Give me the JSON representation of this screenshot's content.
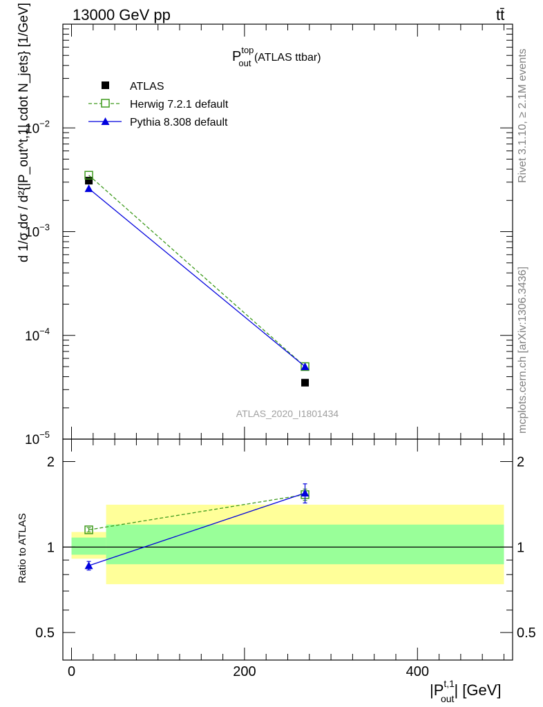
{
  "header": {
    "energy": "13000 GeV pp",
    "process": "tt̄"
  },
  "side": {
    "rivet": "Rivet 3.1.10, ≥ 2.1M events",
    "mcplots": "mcplots.cern.ch [arXiv:1306.3436]"
  },
  "chart_data": [
    {
      "type": "line",
      "panel": "main",
      "title": "P_out^top (ATLAS ttbar)",
      "title_base": "P",
      "title_sup": "top",
      "title_sub": "out",
      "title_rest": " (ATLAS ttbar)",
      "analysis_label": "ATLAS_2020_I1801434",
      "ylabel": "d 1/σ dσ / d²{|P_out^t,1| cdot N_jets} [1/GeV]",
      "yscale": "log",
      "ylim": [
        1e-05,
        0.1
      ],
      "xlim": [
        -10,
        510
      ],
      "yticks": [
        {
          "value": 0.01,
          "base": "10",
          "exp": "−2"
        },
        {
          "value": 0.001,
          "base": "10",
          "exp": "−3"
        },
        {
          "value": 0.0001,
          "base": "10",
          "exp": "−4"
        },
        {
          "value": 1e-05,
          "base": "10",
          "exp": "−5"
        }
      ],
      "series": [
        {
          "name": "ATLAS",
          "marker": "square-filled",
          "color": "#000000",
          "line": "none",
          "x": [
            20,
            270
          ],
          "y": [
            0.0031,
            3.5e-05
          ]
        },
        {
          "name": "Herwig 7.2.1 default",
          "marker": "square-open",
          "color": "#3d9a1c",
          "line": "dashed",
          "x": [
            20,
            270
          ],
          "y": [
            0.0035,
            5e-05
          ]
        },
        {
          "name": "Pythia 8.308 default",
          "marker": "triangle-filled",
          "color": "#0000dd",
          "line": "solid",
          "x": [
            20,
            270
          ],
          "y": [
            0.0026,
            5e-05
          ]
        }
      ]
    },
    {
      "type": "line",
      "panel": "ratio",
      "ylabel": "Ratio to ATLAS",
      "xlabel": "|P_out^t,1| [GeV]",
      "xlabel_base": "|P",
      "xlabel_sup": "t,1",
      "xlabel_sub": "out",
      "xlabel_rest": "| [GeV]",
      "yscale": "log",
      "ylim": [
        0.4,
        2.4
      ],
      "xlim": [
        -10,
        510
      ],
      "xticks": [
        0,
        200,
        400
      ],
      "yticks": [
        0.5,
        1,
        2
      ],
      "reference": 1,
      "bands": [
        {
          "x0": 0,
          "x1": 40,
          "yellow": [
            0.91,
            1.13
          ],
          "green": [
            0.94,
            1.08
          ]
        },
        {
          "x0": 40,
          "x1": 500,
          "yellow": [
            0.74,
            1.41
          ],
          "green": [
            0.87,
            1.2
          ]
        }
      ],
      "series": [
        {
          "name": "Herwig 7.2.1 default",
          "marker": "square-open",
          "color": "#3d9a1c",
          "line": "dashed",
          "x": [
            20,
            270
          ],
          "y": [
            1.15,
            1.53
          ],
          "err": [
            0.02,
            0.07
          ]
        },
        {
          "name": "Pythia 8.308 default",
          "marker": "triangle-filled",
          "color": "#0000dd",
          "line": "solid",
          "x": [
            20,
            270
          ],
          "y": [
            0.86,
            1.55
          ],
          "err": [
            0.03,
            0.12
          ]
        }
      ]
    }
  ]
}
